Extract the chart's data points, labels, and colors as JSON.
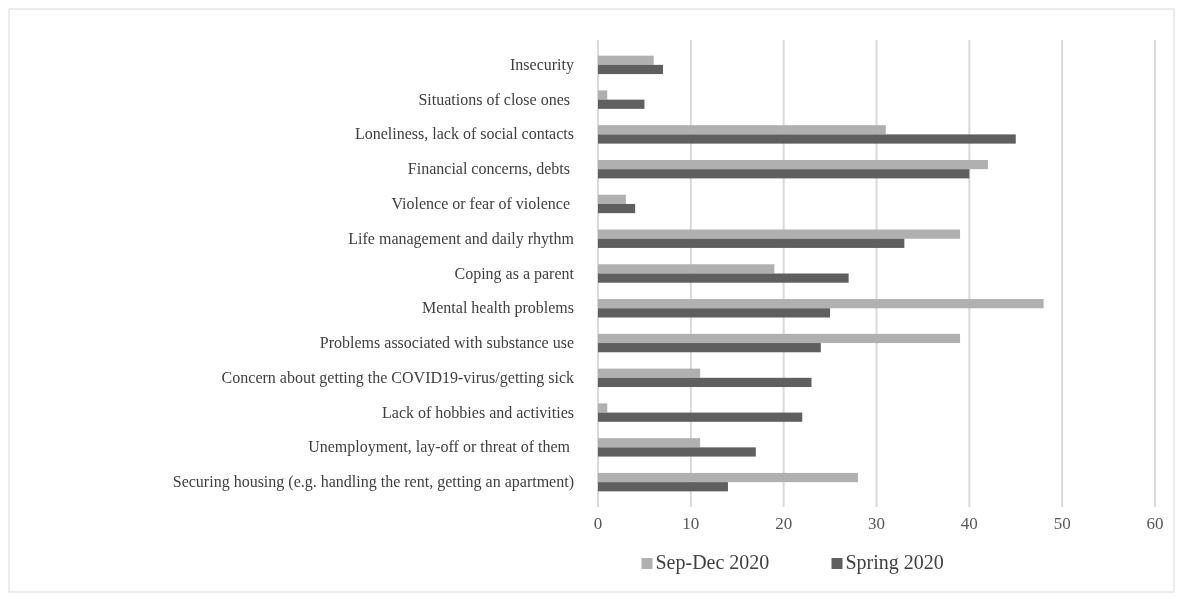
{
  "chart_data": {
    "type": "bar",
    "orientation": "horizontal",
    "categories": [
      "Insecurity",
      "Situations of close ones ",
      "Loneliness, lack of social contacts",
      "Financial concerns, debts ",
      "Violence or fear of violence ",
      "Life management and daily rhythm",
      "Coping as a parent",
      "Mental health problems",
      "Problems associated with substance use",
      "Concern about getting the COVID19-virus/getting sick",
      "Lack of hobbies and activities",
      "Unemployment, lay-off or threat of them ",
      "Securing housing (e.g. handling the rent, getting an apartment)"
    ],
    "series": [
      {
        "name": "Sep-Dec 2020",
        "color": "#b0b0b0",
        "values": [
          6,
          1,
          31,
          42,
          3,
          39,
          19,
          48,
          39,
          11,
          1,
          11,
          28
        ]
      },
      {
        "name": "Spring 2020",
        "color": "#5f5f5f",
        "values": [
          7,
          5,
          45,
          40,
          4,
          33,
          27,
          25,
          24,
          23,
          22,
          17,
          14
        ]
      }
    ],
    "xlim": [
      0,
      60
    ],
    "xticks": [
      0,
      10,
      20,
      30,
      40,
      50,
      60
    ],
    "grid": "x",
    "legend": "bottom"
  }
}
